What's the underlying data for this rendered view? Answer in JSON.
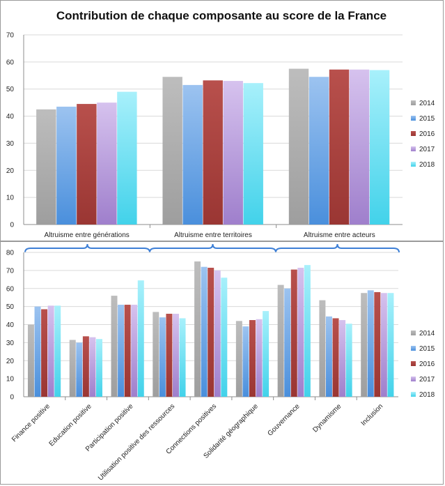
{
  "chart_data": [
    {
      "type": "bar",
      "title": "Contribution de chaque composante au score de la France",
      "categories": [
        "Altruisme entre générations",
        "Altruisme entre territoires",
        "Altruisme entre acteurs"
      ],
      "series": [
        {
          "name": "2014",
          "values": [
            42.5,
            54.5,
            57.5
          ]
        },
        {
          "name": "2015",
          "values": [
            43.5,
            51.5,
            54.5
          ]
        },
        {
          "name": "2016",
          "values": [
            44.5,
            53.2,
            57.2
          ]
        },
        {
          "name": "2017",
          "values": [
            45,
            53,
            57.2
          ]
        },
        {
          "name": "2018",
          "values": [
            49,
            52.2,
            57
          ]
        }
      ],
      "ylim": [
        0,
        70
      ],
      "yticks": [
        0,
        10,
        20,
        30,
        40,
        50,
        60,
        70
      ],
      "grid": true,
      "legend": "right"
    },
    {
      "type": "bar",
      "title": "",
      "categories": [
        "Finance positive",
        "Education positive",
        "Participation positive",
        "Utilisation positive des ressources",
        "Connections positives",
        "Solidarité géographique",
        "Gouvernance",
        "Dynamisme",
        "Inclusion"
      ],
      "series": [
        {
          "name": "2014",
          "values": [
            40,
            31.5,
            56,
            47,
            75,
            42,
            62,
            53.5,
            57.5
          ]
        },
        {
          "name": "2015",
          "values": [
            50,
            30,
            51,
            44,
            72,
            39,
            60,
            44.5,
            59
          ]
        },
        {
          "name": "2016",
          "values": [
            48.5,
            33.5,
            51,
            46,
            71.5,
            42.5,
            70.5,
            43.5,
            58
          ]
        },
        {
          "name": "2017",
          "values": [
            50.5,
            33,
            51,
            46,
            70,
            43,
            71.5,
            42.5,
            57.5
          ]
        },
        {
          "name": "2018",
          "values": [
            50.5,
            32,
            64.5,
            43.5,
            66,
            47.5,
            73,
            40.5,
            57.5
          ]
        }
      ],
      "ylim": [
        0,
        80
      ],
      "yticks": [
        0,
        10,
        20,
        30,
        40,
        50,
        60,
        70,
        80
      ],
      "grid": true,
      "legend": "right"
    }
  ],
  "colors": {
    "2014": [
      "#bdbdbd",
      "#9e9e9e"
    ],
    "2015": [
      "#9cc3f0",
      "#4a8fdc"
    ],
    "2016": [
      "#b8504c",
      "#9a3633"
    ],
    "2017": [
      "#d6c2ee",
      "#9f7fcc"
    ],
    "2018": [
      "#a8f0fb",
      "#42d2ea"
    ],
    "grid": "#d9d9d9",
    "axis": "#8c8c8c",
    "brace": "#3d7fd6"
  }
}
